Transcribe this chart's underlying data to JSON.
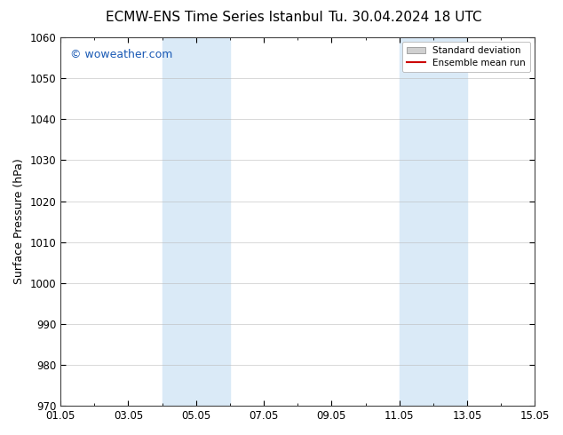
{
  "title_left": "ECMW-ENS Time Series Istanbul",
  "title_right": "Tu. 30.04.2024 18 UTC",
  "ylabel": "Surface Pressure (hPa)",
  "xlabel": "",
  "ylim": [
    970,
    1060
  ],
  "yticks": [
    970,
    980,
    990,
    1000,
    1010,
    1020,
    1030,
    1040,
    1050,
    1060
  ],
  "xtick_labels": [
    "01.05",
    "03.05",
    "05.05",
    "07.05",
    "09.05",
    "11.05",
    "13.05",
    "15.05"
  ],
  "xtick_positions": [
    0,
    2,
    4,
    6,
    8,
    10,
    12,
    14
  ],
  "x_total_days": 14,
  "shaded_regions": [
    {
      "x_start": 3.0,
      "x_end": 5.0,
      "color": "#daeaf7"
    },
    {
      "x_start": 10.0,
      "x_end": 12.0,
      "color": "#daeaf7"
    }
  ],
  "watermark_text": "© woweather.com",
  "watermark_color": "#1a5ab5",
  "legend_entries": [
    {
      "label": "Standard deviation",
      "type": "patch",
      "color": "#d0d0d0"
    },
    {
      "label": "Ensemble mean run",
      "type": "line",
      "color": "#cc0000"
    }
  ],
  "background_color": "#ffffff",
  "grid_color": "#bbbbbb",
  "title_fontsize": 11,
  "axis_label_fontsize": 9,
  "tick_fontsize": 8.5
}
